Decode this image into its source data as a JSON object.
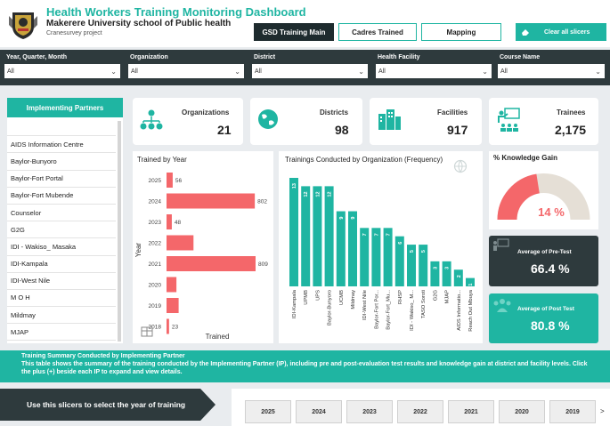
{
  "header": {
    "title": "Health Workers Training Monitoring Dashboard",
    "subtitle": "Makerere University school of Public health",
    "project": "Cranesurvey project",
    "nav": [
      {
        "label": "GSD Training Main",
        "active": true
      },
      {
        "label": "Cadres Trained",
        "active": false
      },
      {
        "label": "Mapping",
        "active": false
      }
    ],
    "clear_label": "Clear all slicers"
  },
  "filters": [
    {
      "label": "Year, Quarter, Month",
      "value": "All"
    },
    {
      "label": "Organization",
      "value": "All"
    },
    {
      "label": "District",
      "value": "All"
    },
    {
      "label": "Health Facility",
      "value": "All"
    },
    {
      "label": "Course Name",
      "value": "All"
    }
  ],
  "partners": {
    "title": "Implementing Partners",
    "items": [
      "",
      "AIDS Information Centre",
      "Baylor-Bunyoro",
      "Baylor-Fort Portal",
      "Baylor-Fort Mubende",
      "Counselor",
      "G2G",
      "IDI - Wakiso_ Masaka",
      "IDI-Kampala",
      "IDI-West Nile",
      "M O H",
      "Mildmay",
      "MJAP"
    ]
  },
  "kpis": [
    {
      "label": "Organizations",
      "value": "21",
      "icon": "organization-icon"
    },
    {
      "label": "Districts",
      "value": "98",
      "icon": "globe-icon"
    },
    {
      "label": "Facilities",
      "value": "917",
      "icon": "building-icon"
    },
    {
      "label": "Trainees",
      "value": "2,175",
      "icon": "trainer-icon"
    }
  ],
  "gauge": {
    "title": "% Knowledge Gain",
    "value": "14 %",
    "fraction": 0.45
  },
  "pre_test": {
    "label": "Average of Pre-Test",
    "value": "66.4 %"
  },
  "post_test": {
    "label": "Average of Post Test",
    "value": "80.8 %"
  },
  "summary": {
    "title": "Training Summary Conducted by Implementing Partner",
    "text": "This table shows the summary of the training conducted by the Implementing Partner (IP), including pre and post-evaluation test results and knowledge gain at district and facility levels. Click the plus (+) beside each IP to expand and view details."
  },
  "slicer": {
    "label": "Use this slicers to select the year of training",
    "years": [
      "2025",
      "2024",
      "2023",
      "2022",
      "2021",
      "2020",
      "2019"
    ],
    "next_label": ">"
  },
  "chart_data": [
    {
      "type": "bar",
      "orientation": "horizontal",
      "title": "Trained by Year",
      "xlabel": "Trained",
      "ylabel": "Year",
      "categories": [
        "2025",
        "2024",
        "2023",
        "2022",
        "2021",
        "2020",
        "2019",
        "2018"
      ],
      "values": [
        56,
        802,
        48,
        245,
        809,
        90,
        110,
        23
      ],
      "data_labels": [
        "56",
        "802",
        "48",
        "",
        "809",
        "",
        "",
        "23"
      ],
      "color": "#f4676a"
    },
    {
      "type": "bar",
      "title": "Trainings Conducted by Organization (Frequency)",
      "categories": [
        "IDI-Kampala",
        "UPMB",
        "UPS",
        "Baylor-Bunyoro",
        "UCMB",
        "Mildmay",
        "IDI-West Nile",
        "Baylor-Fort Por...",
        "Baylor-Fort_Mu...",
        "RHSP",
        "IDI - Wakiso_ M...",
        "TASO Soroti",
        "G2G",
        "MJAP",
        "AIDS Informatio...",
        "Reach Out Mbuya"
      ],
      "values": [
        13,
        12,
        12,
        12,
        9,
        9,
        7,
        7,
        7,
        6,
        5,
        5,
        3,
        3,
        2,
        1
      ],
      "data_labels": [
        "13",
        "12",
        "12",
        "12",
        "9",
        "9",
        "7",
        "7",
        "7",
        "6",
        "5",
        "5",
        "3",
        "3",
        "2",
        "1"
      ],
      "color": "#1fb5a2"
    }
  ]
}
